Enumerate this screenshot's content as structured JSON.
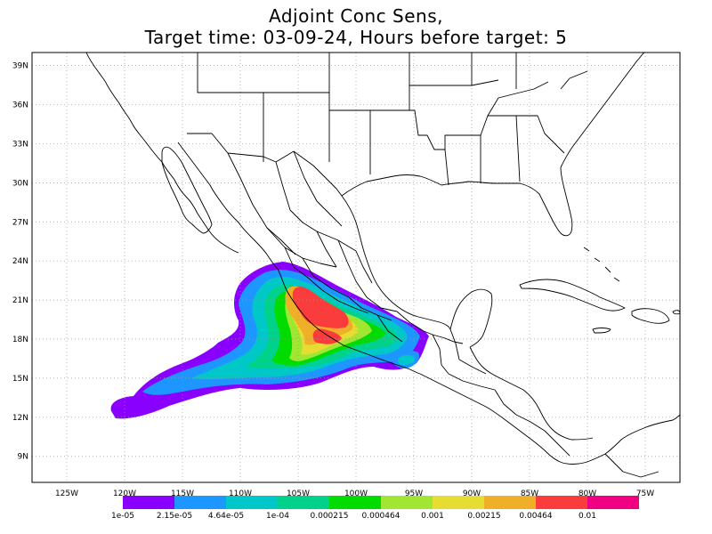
{
  "title": {
    "line1": "Adjoint Conc Sens,",
    "line2": "Target time: 03-09-24, Hours before target: 5"
  },
  "map": {
    "lon_range": [
      -128,
      -72
    ],
    "lat_range": [
      7,
      40
    ],
    "lon_ticks": [
      "125W",
      "120W",
      "115W",
      "110W",
      "105W",
      "100W",
      "95W",
      "90W",
      "85W",
      "80W",
      "75W"
    ],
    "lon_tick_values": [
      -125,
      -120,
      -115,
      -110,
      -105,
      -100,
      -95,
      -90,
      -85,
      -80,
      -75
    ],
    "lat_ticks": [
      "9N",
      "12N",
      "15N",
      "18N",
      "21N",
      "24N",
      "27N",
      "30N",
      "33N",
      "36N",
      "39N"
    ],
    "lat_tick_values": [
      9,
      12,
      15,
      18,
      21,
      24,
      27,
      30,
      33,
      36,
      39
    ],
    "grid": "dotted"
  },
  "colorbar": {
    "colors": [
      "#8a00ff",
      "#1e96ff",
      "#00c8c8",
      "#00d28c",
      "#00dc00",
      "#a0e632",
      "#e6dc32",
      "#f0af28",
      "#fa3c3c",
      "#f00082"
    ],
    "labels": [
      "1e-05",
      "2.15e-05",
      "4.64e-05",
      "1e-04",
      "0.000215",
      "0.000464",
      "0.001",
      "0.00215",
      "0.00464",
      "0.01"
    ]
  }
}
